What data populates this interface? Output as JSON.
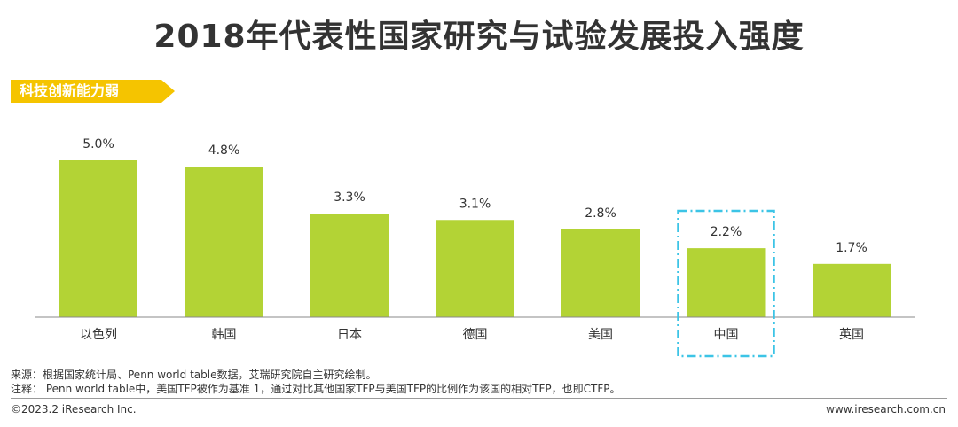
{
  "title": "2018年代表性国家研究与试验发展投入强度",
  "tag_label": "科技创新能力弱",
  "chart_data": {
    "type": "bar",
    "categories": [
      "以色列",
      "韩国",
      "日本",
      "德国",
      "美国",
      "中国",
      "英国"
    ],
    "values": [
      5.0,
      4.8,
      3.3,
      3.1,
      2.8,
      2.2,
      1.7
    ],
    "value_labels": [
      "5.0%",
      "4.8%",
      "3.3%",
      "3.1%",
      "2.8%",
      "2.2%",
      "1.7%"
    ],
    "ylim": [
      0,
      5.0
    ],
    "highlight": "中国",
    "bar_color": "#b3d335",
    "highlight_color": "#3cc4e6",
    "grid": false
  },
  "source_text": "来源：根据国家统计局、Penn world table数据，艾瑞研究院自主研究绘制。",
  "note_text": "注释：  Penn world table中，美国TFP被作为基准 1，通过对比其他国家TFP与美国TFP的比例作为该国的相对TFP，也即CTFP。",
  "footer_left": "©2023.2 iResearch Inc.",
  "footer_right": "www.iresearch.com.cn",
  "colors": {
    "tag_yellow": "#f5c400",
    "axis": "#888888"
  }
}
